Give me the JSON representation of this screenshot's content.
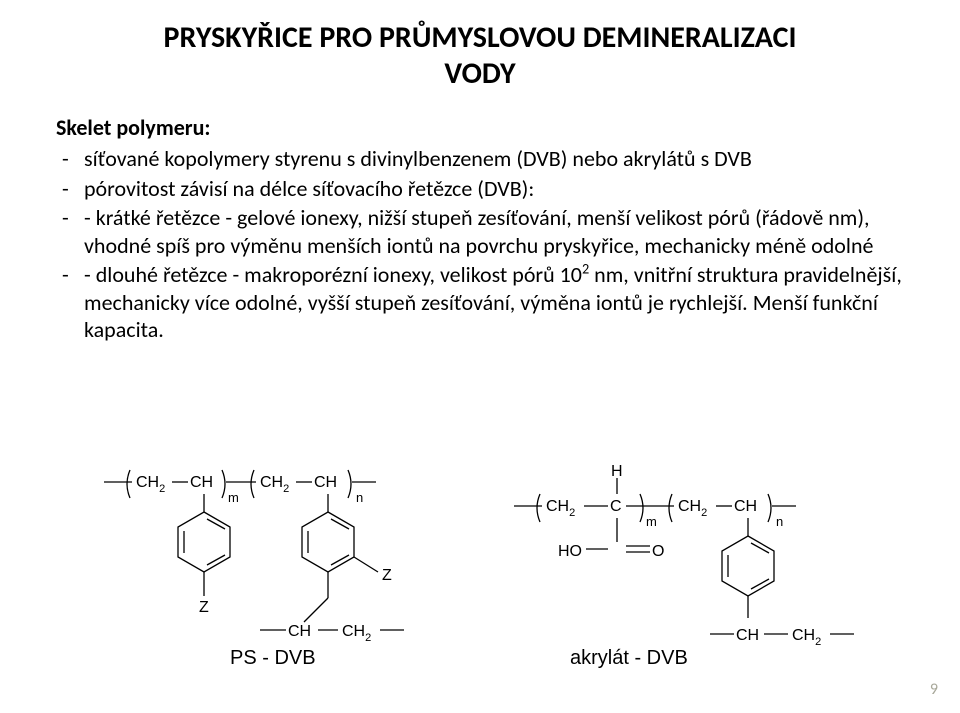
{
  "page_number": "9",
  "title_line1": "PRYSKYŘICE PRO PRŮMYSLOVOU DEMINERALIZACI",
  "title_line2": "VODY",
  "subhead": "Skelet polymeru:",
  "bullets": [
    "síťované kopolymery styrenu s divinylbenzenem (DVB) nebo akrylátů s DVB",
    "pórovitost závisí na délce síťovacího řetězce (DVB):",
    "- krátké řetězce - gelové ionexy, nižší stupeň zesíťování, menší velikost pórů (řádově nm), vhodné spíš pro výměnu menších iontů na povrchu pryskyřice, mechanicky méně odolné",
    "- dlouhé řetězce - makroporézní ionexy, velikost pórů 10__SUP2__ nm, vnitřní struktura pravidelnější, mechanicky více odolné, vyšší stupeň zesíťování, výměna iontů je rychlejší. Menší funkční kapacita."
  ],
  "diagram_left": {
    "label": "PS - DVB",
    "groups": {
      "ch2_a": "CH",
      "ch2_a_sub": "2",
      "ch_a": "CH",
      "ch2_b": "CH",
      "ch2_b_sub": "2",
      "ch_b": "CH",
      "m": "m",
      "n": "n",
      "z1": "Z",
      "z2": "Z",
      "tail_ch": "CH",
      "tail_ch2": "CH",
      "tail_ch2_sub": "2"
    },
    "text_fontsize": 16,
    "sub_fontsize": 11,
    "stroke": "#000000",
    "stroke_width": 1.3
  },
  "diagram_right": {
    "label": "akrylát - DVB",
    "groups": {
      "h": "H",
      "ch2_a": "CH",
      "ch2_a_sub": "2",
      "c": "C",
      "ch2_b": "CH",
      "ch2_b_sub": "2",
      "ch_b": "CH",
      "m": "m",
      "n": "n",
      "ho": "HO",
      "o": "O",
      "tail_ch": "CH",
      "tail_ch2": "CH",
      "tail_ch2_sub": "2"
    },
    "text_fontsize": 16,
    "sub_fontsize": 11,
    "stroke": "#000000",
    "stroke_width": 1.3
  }
}
